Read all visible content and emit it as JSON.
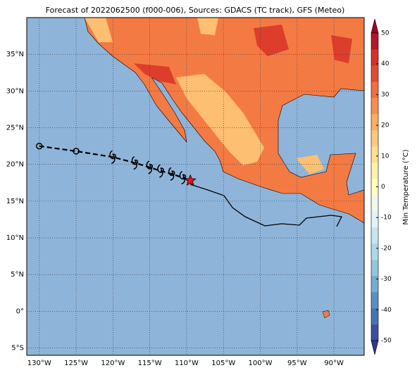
{
  "chart_data": {
    "type": "map",
    "title": "Forecast of 2022062500 (f000-006), Sources: GDACS (TC track), GFS (Meteo)",
    "xlim": [
      -131.7,
      -85.9
    ],
    "ylim": [
      -6,
      40
    ],
    "xticks": [
      {
        "value": -130,
        "label": "130°W"
      },
      {
        "value": -125,
        "label": "125°W"
      },
      {
        "value": -120,
        "label": "120°W"
      },
      {
        "value": -115,
        "label": "115°W"
      },
      {
        "value": -110,
        "label": "110°W"
      },
      {
        "value": -105,
        "label": "105°W"
      },
      {
        "value": -100,
        "label": "100°W"
      },
      {
        "value": -95,
        "label": "95°W"
      },
      {
        "value": -90,
        "label": "90°W"
      }
    ],
    "yticks": [
      {
        "value": -5,
        "label": "5°S"
      },
      {
        "value": 0,
        "label": "0°"
      },
      {
        "value": 5,
        "label": "5°N"
      },
      {
        "value": 10,
        "label": "10°N"
      },
      {
        "value": 15,
        "label": "15°N"
      },
      {
        "value": 20,
        "label": "20°N"
      },
      {
        "value": 25,
        "label": "25°N"
      },
      {
        "value": 30,
        "label": "30°N"
      },
      {
        "value": 35,
        "label": "35°N"
      }
    ],
    "grid": true,
    "track": {
      "x": [
        -130,
        -125,
        -120,
        -117,
        -115,
        -113.5,
        -112,
        -110.5,
        -109.5
      ],
      "y": [
        22.5,
        21.8,
        21,
        20.2,
        19.6,
        19.1,
        18.7,
        18.2,
        17.8
      ],
      "symbols": [
        "circle",
        "circle",
        "tc",
        "tc",
        "tc",
        "tc",
        "tc",
        "tc",
        "star"
      ]
    },
    "colorbar": {
      "label": "Min Temperature (°C)",
      "lim": [
        -50,
        50
      ],
      "ticks": [
        -50,
        -40,
        -30,
        -20,
        -10,
        0,
        10,
        20,
        30,
        40,
        50
      ],
      "colors": [
        "#313695",
        "#3a4fa0",
        "#4575b4",
        "#5b8fc2",
        "#74add1",
        "#92c5de",
        "#abd9e9",
        "#c6e6f0",
        "#e0f3f8",
        "#f0f8ec",
        "#ffffbf",
        "#fff2aa",
        "#fee090",
        "#fdc980",
        "#fdae61",
        "#f88d52",
        "#f46d43",
        "#e34a33",
        "#d73027",
        "#b5152b",
        "#a50026"
      ]
    }
  }
}
